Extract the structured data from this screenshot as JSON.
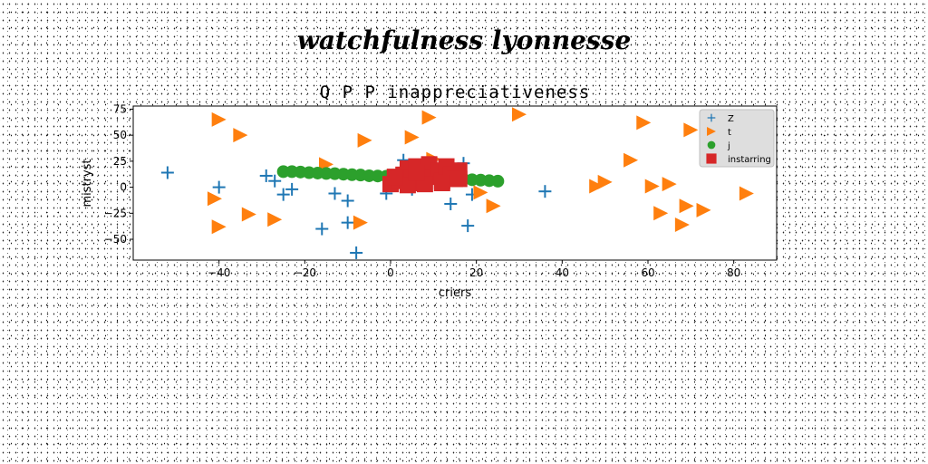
{
  "suptitle": "watchfulness lyonnesse",
  "chart_data": {
    "type": "scatter",
    "title": "Q P P inappreciativeness",
    "xlabel": "criers",
    "ylabel": "mistryst",
    "xlim": [
      -60,
      90
    ],
    "ylim": [
      -70,
      78
    ],
    "xticks": [
      -40,
      -20,
      0,
      20,
      40,
      60,
      80
    ],
    "yticks": [
      -50,
      -25,
      0,
      25,
      50,
      75
    ],
    "legend_position": "top-right",
    "series": [
      {
        "name": "Z",
        "marker": "plus",
        "color": "#1f77b4",
        "x": [
          -52,
          -40,
          -29,
          -27,
          -25,
          -23,
          -16,
          -13,
          -10,
          -10,
          -8,
          -1,
          3,
          5,
          14,
          17,
          18,
          19,
          36
        ],
        "y": [
          14,
          0,
          11,
          6,
          -7,
          -2,
          -40,
          -6,
          -13,
          -34,
          -63,
          -6,
          26,
          -2,
          -16,
          23,
          -37,
          -7,
          -4
        ]
      },
      {
        "name": "t",
        "marker": "triangle-right",
        "color": "#ff7f0e",
        "x": [
          -40,
          -41,
          -40,
          -35,
          -33,
          -27,
          -15,
          -7,
          -6,
          5,
          9,
          10,
          21,
          24,
          30,
          48,
          50,
          56,
          59,
          61,
          63,
          65,
          68,
          69,
          70,
          73,
          83
        ],
        "y": [
          65,
          -11,
          -38,
          50,
          -26,
          -31,
          22,
          -34,
          45,
          48,
          67,
          27,
          -5,
          -18,
          70,
          1,
          5,
          26,
          62,
          1,
          -25,
          3,
          -36,
          -18,
          55,
          -22,
          -6
        ]
      },
      {
        "name": "j",
        "marker": "circle",
        "color": "#2ca02c",
        "x": [
          -25,
          -23,
          -21,
          -19,
          -17,
          -15,
          -13,
          -11,
          -9,
          -7,
          -5,
          -3,
          -1,
          1,
          3,
          5,
          7,
          9,
          11,
          13,
          15,
          17,
          19,
          21,
          23,
          25
        ],
        "y": [
          15,
          15,
          14.6,
          14,
          13.6,
          13.2,
          13,
          12.5,
          12,
          11.7,
          11,
          10.8,
          10.5,
          10,
          10,
          9.8,
          9.2,
          9,
          8.7,
          8.2,
          8,
          7.7,
          7.2,
          6.8,
          6.3,
          5.8
        ]
      },
      {
        "name": "instarring",
        "marker": "square",
        "color": "#d62728",
        "x": [
          0,
          2,
          3,
          4,
          5,
          6,
          7,
          8,
          9,
          10,
          11,
          12,
          13,
          14,
          15,
          16,
          16,
          4,
          8,
          12,
          1,
          6
        ],
        "y": [
          3,
          6,
          12,
          18,
          9,
          20,
          4,
          14,
          22,
          10,
          16,
          6,
          20,
          12,
          8,
          16,
          8,
          2,
          3,
          4,
          10,
          14
        ]
      }
    ]
  }
}
